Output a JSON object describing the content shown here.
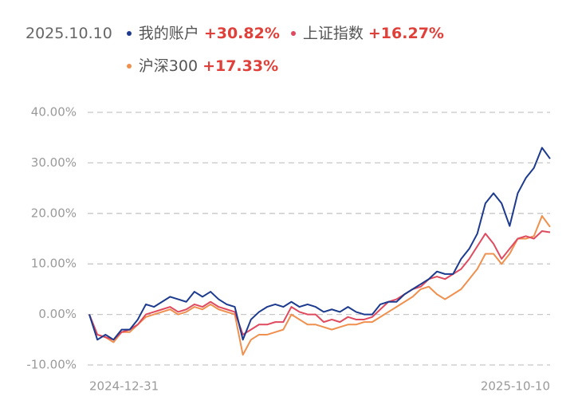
{
  "chart_data": {
    "type": "line",
    "date": "2025.10.10",
    "categories": [
      "2024-12-31",
      null,
      null,
      null,
      null,
      null,
      null,
      null,
      null,
      null,
      null,
      null,
      null,
      null,
      null,
      null,
      null,
      null,
      null,
      null,
      null,
      null,
      null,
      null,
      null,
      null,
      null,
      null,
      null,
      null,
      null,
      null,
      null,
      null,
      null,
      null,
      null,
      null,
      null,
      null,
      null,
      null,
      null,
      null,
      null,
      null,
      null,
      null,
      null,
      null,
      null,
      null,
      null,
      null,
      null,
      null,
      null,
      "2025-10-10"
    ],
    "series": [
      {
        "name": "我的账户",
        "color": "#1c3a8e",
        "summary_label": "+30.82%",
        "values": [
          0,
          -5,
          -4,
          -5,
          -3,
          -3,
          -1,
          2,
          1.5,
          2.5,
          3.5,
          3,
          2.5,
          4.5,
          3.5,
          4.5,
          3,
          2,
          1.5,
          -5,
          -1,
          0.5,
          1.5,
          2,
          1.5,
          2.5,
          1.5,
          2,
          1.5,
          0.5,
          1,
          0.5,
          1.5,
          0.5,
          0,
          0,
          2,
          2.5,
          2.5,
          4,
          5,
          6,
          7,
          8.5,
          8,
          8,
          11,
          13,
          16,
          22,
          24,
          22,
          17.5,
          24,
          27,
          29,
          33,
          30.82
        ]
      },
      {
        "name": "上证指数",
        "color": "#e04a5e",
        "summary_label": "+16.27%",
        "values": [
          0,
          -4,
          -4.5,
          -5,
          -3.5,
          -3,
          -2,
          0,
          0.5,
          1,
          1.5,
          0.5,
          1,
          2,
          1.5,
          2.5,
          1.5,
          1,
          0.5,
          -4,
          -3,
          -2,
          -2,
          -1.5,
          -1.5,
          1.5,
          0.5,
          0,
          0,
          -1.5,
          -1,
          -1.5,
          -0.5,
          -1,
          -1,
          -0.5,
          1,
          2.5,
          3,
          4,
          5,
          5.5,
          7,
          7.5,
          7,
          8,
          9,
          11,
          13.5,
          16,
          14,
          11,
          13,
          15,
          15.5,
          15,
          16.5,
          16.27
        ]
      },
      {
        "name": "沪深300",
        "color": "#f0904e",
        "summary_label": "+17.33%",
        "values": [
          0,
          -4,
          -4.5,
          -5.5,
          -3.5,
          -3.5,
          -2,
          -0.5,
          0,
          0.5,
          1,
          0,
          0.5,
          1.5,
          1,
          2,
          1,
          0.5,
          0,
          -8,
          -5,
          -4,
          -4,
          -3.5,
          -3,
          0,
          -1,
          -2,
          -2,
          -2.5,
          -3,
          -2.5,
          -2,
          -2,
          -1.5,
          -1.5,
          -0.5,
          0.5,
          1.5,
          2.5,
          3.5,
          5,
          5.5,
          4,
          3,
          4,
          5,
          7,
          9,
          12,
          12,
          10,
          12,
          15,
          15,
          15.5,
          19.5,
          17.33
        ]
      }
    ],
    "ylim": [
      -10,
      40
    ],
    "yticks": [
      {
        "value": -10,
        "label": "-10.00%"
      },
      {
        "value": 0,
        "label": "0.00%"
      },
      {
        "value": 10,
        "label": "10.00%"
      },
      {
        "value": 20,
        "label": "20.00%"
      },
      {
        "value": 30,
        "label": "30.00%"
      },
      {
        "value": 40,
        "label": "40.00%"
      }
    ],
    "grid": true
  }
}
